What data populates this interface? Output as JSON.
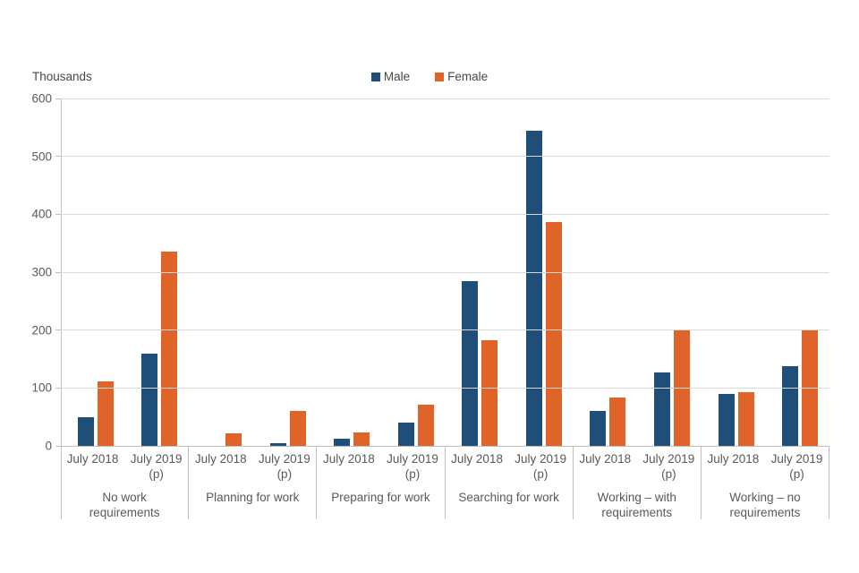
{
  "y_axis_title": "Thousands",
  "colors": {
    "male": "#1F4E79",
    "female": "#E0642A",
    "gridline": "#D9D9D9",
    "axis": "#BFBFBF",
    "text": "#595959"
  },
  "chart_data": {
    "type": "bar",
    "title": "",
    "xlabel": "",
    "ylabel": "Thousands",
    "ylim": [
      0,
      600
    ],
    "ytick_step": 100,
    "grid": true,
    "legend_position": "top-center",
    "categories": [
      "No work requirements",
      "Planning for work",
      "Preparing for work",
      "Searching for work",
      "Working – with requirements",
      "Working – no requirements"
    ],
    "subcategory_label_lines": [
      [
        "July 2018"
      ],
      [
        "July 2019",
        "(p)"
      ]
    ],
    "subcategories": [
      "July 2018",
      "July 2019 (p)"
    ],
    "series": [
      {
        "name": "Male",
        "color": "#1F4E79",
        "values": [
          [
            50,
            160
          ],
          [
            0,
            4
          ],
          [
            12,
            40
          ],
          [
            284,
            545
          ],
          [
            60,
            127
          ],
          [
            90,
            138
          ]
        ]
      },
      {
        "name": "Female",
        "color": "#E0642A",
        "values": [
          [
            112,
            335
          ],
          [
            22,
            60
          ],
          [
            23,
            71
          ],
          [
            183,
            387
          ],
          [
            84,
            201
          ],
          [
            93,
            201
          ]
        ]
      }
    ]
  }
}
